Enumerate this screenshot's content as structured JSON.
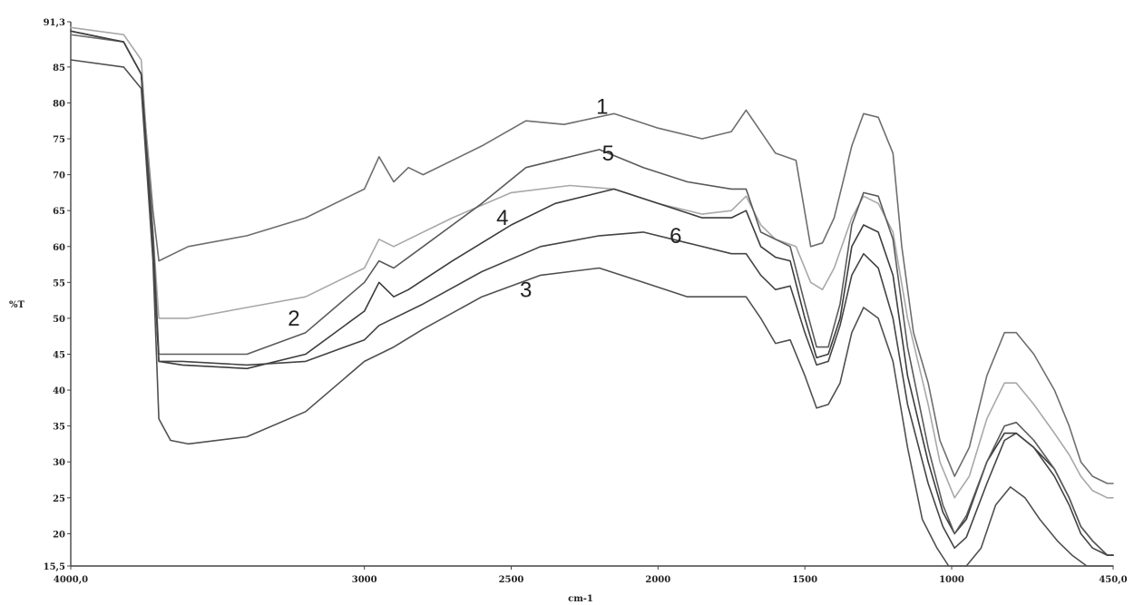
{
  "chart_data": {
    "type": "line",
    "xlabel": "cm-1",
    "ylabel": "%T",
    "xlim": [
      4000,
      450
    ],
    "ylim": [
      15.5,
      91.3
    ],
    "x_reversed": true,
    "grid": false,
    "x_tick_labels": [
      {
        "value": 4000,
        "label": "4000,0"
      },
      {
        "value": 3000,
        "label": "3000"
      },
      {
        "value": 2500,
        "label": "2500"
      },
      {
        "value": 2000,
        "label": "2000"
      },
      {
        "value": 1500,
        "label": "1500"
      },
      {
        "value": 1000,
        "label": "1000"
      },
      {
        "value": 450,
        "label": "450,0"
      }
    ],
    "y_tick_labels": [
      {
        "value": 91.3,
        "label": "91,3"
      },
      {
        "value": 85,
        "label": "85"
      },
      {
        "value": 80,
        "label": "80"
      },
      {
        "value": 75,
        "label": "75"
      },
      {
        "value": 70,
        "label": "70"
      },
      {
        "value": 65,
        "label": "65"
      },
      {
        "value": 60,
        "label": "60"
      },
      {
        "value": 55,
        "label": "55"
      },
      {
        "value": 50,
        "label": "50"
      },
      {
        "value": 45,
        "label": "45"
      },
      {
        "value": 40,
        "label": "40"
      },
      {
        "value": 35,
        "label": "35"
      },
      {
        "value": 30,
        "label": "30"
      },
      {
        "value": 25,
        "label": "25"
      },
      {
        "value": 20,
        "label": "20"
      },
      {
        "value": 15.5,
        "label": "15,5"
      }
    ],
    "series": [
      {
        "name": "1",
        "color": "#6e6e6e",
        "label_at": [
          2190,
          79.5
        ],
        "points": [
          [
            4000,
            89.5
          ],
          [
            3820,
            88.5
          ],
          [
            3760,
            84
          ],
          [
            3720,
            65
          ],
          [
            3700,
            58
          ],
          [
            3600,
            60
          ],
          [
            3400,
            61.5
          ],
          [
            3200,
            64
          ],
          [
            3000,
            68
          ],
          [
            2950,
            72.5
          ],
          [
            2900,
            69
          ],
          [
            2850,
            71
          ],
          [
            2800,
            70
          ],
          [
            2600,
            74
          ],
          [
            2450,
            77.5
          ],
          [
            2320,
            77
          ],
          [
            2150,
            78.5
          ],
          [
            2000,
            76.5
          ],
          [
            1850,
            75
          ],
          [
            1750,
            76
          ],
          [
            1700,
            79
          ],
          [
            1650,
            76
          ],
          [
            1600,
            73
          ],
          [
            1530,
            72
          ],
          [
            1480,
            60
          ],
          [
            1440,
            60.5
          ],
          [
            1400,
            64
          ],
          [
            1340,
            74
          ],
          [
            1300,
            78.5
          ],
          [
            1250,
            78
          ],
          [
            1200,
            73
          ],
          [
            1170,
            60
          ],
          [
            1130,
            48
          ],
          [
            1080,
            41
          ],
          [
            1040,
            33
          ],
          [
            990,
            28
          ],
          [
            940,
            32
          ],
          [
            880,
            42
          ],
          [
            820,
            48
          ],
          [
            780,
            48
          ],
          [
            720,
            45
          ],
          [
            650,
            40
          ],
          [
            600,
            35
          ],
          [
            560,
            30
          ],
          [
            520,
            28
          ],
          [
            470,
            27
          ],
          [
            450,
            27
          ]
        ]
      },
      {
        "name": "2",
        "color": "#a8a8a8",
        "label_at": [
          3240,
          50
        ],
        "points": [
          [
            4000,
            90.5
          ],
          [
            3820,
            89.5
          ],
          [
            3760,
            86
          ],
          [
            3720,
            62
          ],
          [
            3700,
            50
          ],
          [
            3600,
            50
          ],
          [
            3400,
            51.5
          ],
          [
            3200,
            53
          ],
          [
            3000,
            57
          ],
          [
            2950,
            61
          ],
          [
            2900,
            60
          ],
          [
            2850,
            61
          ],
          [
            2700,
            64
          ],
          [
            2500,
            67.5
          ],
          [
            2300,
            68.5
          ],
          [
            2150,
            68
          ],
          [
            2000,
            66
          ],
          [
            1850,
            64.5
          ],
          [
            1750,
            65
          ],
          [
            1700,
            67
          ],
          [
            1650,
            63
          ],
          [
            1600,
            61
          ],
          [
            1530,
            60
          ],
          [
            1480,
            55
          ],
          [
            1440,
            54
          ],
          [
            1400,
            57
          ],
          [
            1340,
            64
          ],
          [
            1300,
            67
          ],
          [
            1250,
            66
          ],
          [
            1200,
            62
          ],
          [
            1150,
            50
          ],
          [
            1080,
            38
          ],
          [
            1040,
            30
          ],
          [
            990,
            25
          ],
          [
            940,
            28
          ],
          [
            880,
            36
          ],
          [
            820,
            41
          ],
          [
            780,
            41
          ],
          [
            720,
            38
          ],
          [
            650,
            34
          ],
          [
            600,
            31
          ],
          [
            560,
            28
          ],
          [
            520,
            26
          ],
          [
            470,
            25
          ],
          [
            450,
            25
          ]
        ]
      },
      {
        "name": "3",
        "color": "#505050",
        "label_at": [
          2450,
          54
        ],
        "points": [
          [
            4000,
            86
          ],
          [
            3820,
            85
          ],
          [
            3760,
            82
          ],
          [
            3720,
            58
          ],
          [
            3700,
            36
          ],
          [
            3660,
            33
          ],
          [
            3600,
            32.5
          ],
          [
            3400,
            33.5
          ],
          [
            3200,
            37
          ],
          [
            3000,
            44
          ],
          [
            2900,
            46
          ],
          [
            2800,
            48.5
          ],
          [
            2600,
            53
          ],
          [
            2400,
            56
          ],
          [
            2200,
            57
          ],
          [
            2050,
            55
          ],
          [
            1900,
            53
          ],
          [
            1750,
            53
          ],
          [
            1700,
            53
          ],
          [
            1650,
            50
          ],
          [
            1600,
            46.5
          ],
          [
            1550,
            47
          ],
          [
            1500,
            42
          ],
          [
            1460,
            37.5
          ],
          [
            1420,
            38
          ],
          [
            1380,
            41
          ],
          [
            1340,
            48
          ],
          [
            1300,
            51.5
          ],
          [
            1250,
            50
          ],
          [
            1200,
            44
          ],
          [
            1150,
            32
          ],
          [
            1100,
            22
          ],
          [
            1050,
            18
          ],
          [
            1010,
            15.5
          ],
          [
            950,
            15.5
          ],
          [
            900,
            18
          ],
          [
            850,
            24
          ],
          [
            800,
            26.5
          ],
          [
            750,
            25
          ],
          [
            700,
            22
          ],
          [
            640,
            19
          ],
          [
            590,
            17
          ],
          [
            540,
            15.5
          ],
          [
            450,
            15.5
          ]
        ]
      },
      {
        "name": "4",
        "color": "#3c3c3c",
        "label_at": [
          2530,
          64
        ],
        "points": [
          [
            4000,
            90
          ],
          [
            3820,
            88.5
          ],
          [
            3760,
            84
          ],
          [
            3720,
            60
          ],
          [
            3700,
            44
          ],
          [
            3620,
            43.5
          ],
          [
            3400,
            43
          ],
          [
            3200,
            45
          ],
          [
            3000,
            51
          ],
          [
            2950,
            55
          ],
          [
            2900,
            53
          ],
          [
            2850,
            54
          ],
          [
            2700,
            58
          ],
          [
            2500,
            63
          ],
          [
            2350,
            66
          ],
          [
            2150,
            68
          ],
          [
            2000,
            66
          ],
          [
            1850,
            64
          ],
          [
            1750,
            64
          ],
          [
            1700,
            65
          ],
          [
            1650,
            60
          ],
          [
            1600,
            58.5
          ],
          [
            1550,
            58
          ],
          [
            1500,
            50
          ],
          [
            1460,
            44.5
          ],
          [
            1420,
            45
          ],
          [
            1380,
            50
          ],
          [
            1340,
            60
          ],
          [
            1300,
            63
          ],
          [
            1250,
            62
          ],
          [
            1200,
            56
          ],
          [
            1150,
            42
          ],
          [
            1080,
            30
          ],
          [
            1030,
            23
          ],
          [
            990,
            20
          ],
          [
            950,
            22
          ],
          [
            880,
            30
          ],
          [
            820,
            34
          ],
          [
            780,
            34
          ],
          [
            720,
            32
          ],
          [
            650,
            29
          ],
          [
            600,
            25
          ],
          [
            560,
            21
          ],
          [
            520,
            19
          ],
          [
            470,
            17
          ],
          [
            450,
            17
          ]
        ]
      },
      {
        "name": "5",
        "color": "#5a5a5a",
        "label_at": [
          2170,
          73
        ],
        "points": [
          [
            4000,
            90
          ],
          [
            3820,
            88.5
          ],
          [
            3760,
            84
          ],
          [
            3720,
            62
          ],
          [
            3700,
            45
          ],
          [
            3620,
            45
          ],
          [
            3400,
            45
          ],
          [
            3200,
            48
          ],
          [
            3000,
            55
          ],
          [
            2950,
            58
          ],
          [
            2900,
            57
          ],
          [
            2800,
            60
          ],
          [
            2600,
            66
          ],
          [
            2450,
            71
          ],
          [
            2350,
            72
          ],
          [
            2200,
            73.5
          ],
          [
            2050,
            71
          ],
          [
            1900,
            69
          ],
          [
            1750,
            68
          ],
          [
            1700,
            68
          ],
          [
            1650,
            62
          ],
          [
            1600,
            61
          ],
          [
            1550,
            60
          ],
          [
            1500,
            52
          ],
          [
            1460,
            46
          ],
          [
            1420,
            46
          ],
          [
            1380,
            52
          ],
          [
            1340,
            63
          ],
          [
            1300,
            67.5
          ],
          [
            1250,
            67
          ],
          [
            1200,
            61
          ],
          [
            1150,
            46
          ],
          [
            1080,
            32
          ],
          [
            1030,
            24
          ],
          [
            990,
            20
          ],
          [
            950,
            22.5
          ],
          [
            880,
            30
          ],
          [
            820,
            35
          ],
          [
            780,
            35.5
          ],
          [
            720,
            33
          ],
          [
            650,
            29
          ],
          [
            600,
            25
          ],
          [
            560,
            21
          ],
          [
            520,
            19
          ],
          [
            470,
            17
          ],
          [
            450,
            17
          ]
        ]
      },
      {
        "name": "6",
        "color": "#444444",
        "label_at": [
          1940,
          61.5
        ],
        "points": [
          [
            4000,
            90
          ],
          [
            3820,
            88.5
          ],
          [
            3760,
            84
          ],
          [
            3720,
            60
          ],
          [
            3700,
            44
          ],
          [
            3620,
            44
          ],
          [
            3400,
            43.5
          ],
          [
            3200,
            44
          ],
          [
            3000,
            47
          ],
          [
            2950,
            49
          ],
          [
            2800,
            52
          ],
          [
            2600,
            56.5
          ],
          [
            2400,
            60
          ],
          [
            2200,
            61.5
          ],
          [
            2050,
            62
          ],
          [
            1900,
            60.5
          ],
          [
            1750,
            59
          ],
          [
            1700,
            59
          ],
          [
            1650,
            56
          ],
          [
            1600,
            54
          ],
          [
            1550,
            54.5
          ],
          [
            1500,
            48
          ],
          [
            1460,
            43.5
          ],
          [
            1420,
            44
          ],
          [
            1380,
            49
          ],
          [
            1340,
            56
          ],
          [
            1300,
            59
          ],
          [
            1250,
            57
          ],
          [
            1200,
            50
          ],
          [
            1150,
            38
          ],
          [
            1080,
            27
          ],
          [
            1030,
            21
          ],
          [
            990,
            18
          ],
          [
            950,
            19.5
          ],
          [
            880,
            27
          ],
          [
            820,
            33
          ],
          [
            780,
            34
          ],
          [
            720,
            32
          ],
          [
            650,
            28
          ],
          [
            600,
            24
          ],
          [
            560,
            20
          ],
          [
            520,
            18
          ],
          [
            470,
            17
          ],
          [
            450,
            17
          ]
        ]
      }
    ]
  }
}
